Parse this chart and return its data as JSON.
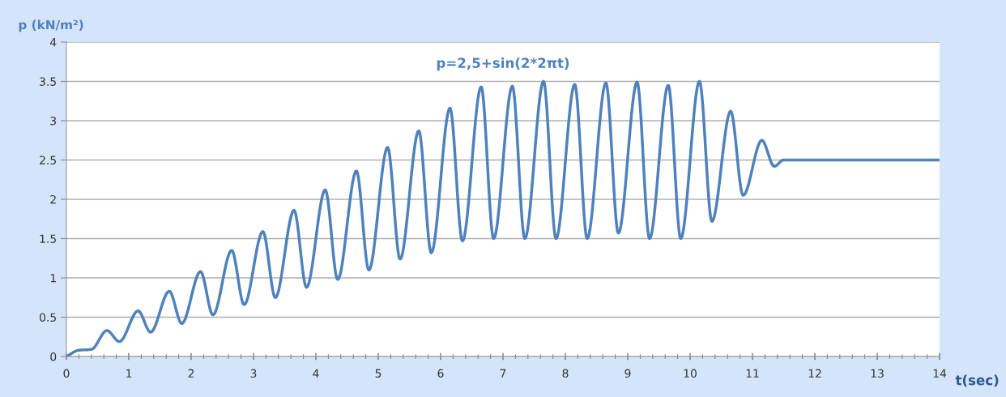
{
  "chart_data": {
    "type": "line",
    "xlabel": "t(sec)",
    "ylabel": "p (kN/m²)",
    "annotations": [
      "p=2,5+sin(2*2πt)"
    ],
    "x": [
      0,
      0.2,
      0.4,
      0.65,
      0.85,
      1.15,
      1.35,
      1.65,
      1.85,
      2.15,
      2.35,
      2.65,
      2.85,
      3.15,
      3.35,
      3.65,
      3.85,
      4.15,
      4.35,
      4.65,
      4.85,
      5.15,
      5.35,
      5.65,
      5.85,
      6.15,
      6.35,
      6.65,
      6.85,
      7.15,
      7.35,
      7.65,
      7.85,
      8.15,
      8.35,
      8.65,
      8.85,
      9.15,
      9.35,
      9.65,
      9.85,
      10.15,
      10.35,
      10.65,
      10.85,
      11.15,
      11.35,
      11.5,
      14
    ],
    "series": [
      {
        "color": "#4f81bd",
        "values": [
          0,
          0.08,
          0.09,
          0.33,
          0.19,
          0.58,
          0.31,
          0.83,
          0.42,
          1.08,
          0.53,
          1.35,
          0.66,
          1.59,
          0.75,
          1.86,
          0.88,
          2.12,
          0.98,
          2.36,
          1.1,
          2.66,
          1.24,
          2.87,
          1.32,
          3.16,
          1.47,
          3.43,
          1.5,
          3.44,
          1.5,
          3.5,
          1.5,
          3.46,
          1.5,
          3.48,
          1.57,
          3.49,
          1.5,
          3.45,
          1.5,
          3.5,
          1.72,
          3.12,
          2.05,
          2.75,
          2.42,
          2.5,
          2.5
        ]
      }
    ],
    "xlim": [
      0,
      14
    ],
    "xticks": [
      0,
      1,
      2,
      3,
      4,
      5,
      6,
      7,
      8,
      9,
      10,
      11,
      12,
      13,
      14
    ],
    "ylim": [
      0,
      4
    ],
    "yticks": [
      0,
      0.5,
      1,
      1.5,
      2,
      2.5,
      3,
      3.5,
      4
    ],
    "grid": "y",
    "legend": false,
    "marker": "none",
    "line_style": "solid"
  }
}
